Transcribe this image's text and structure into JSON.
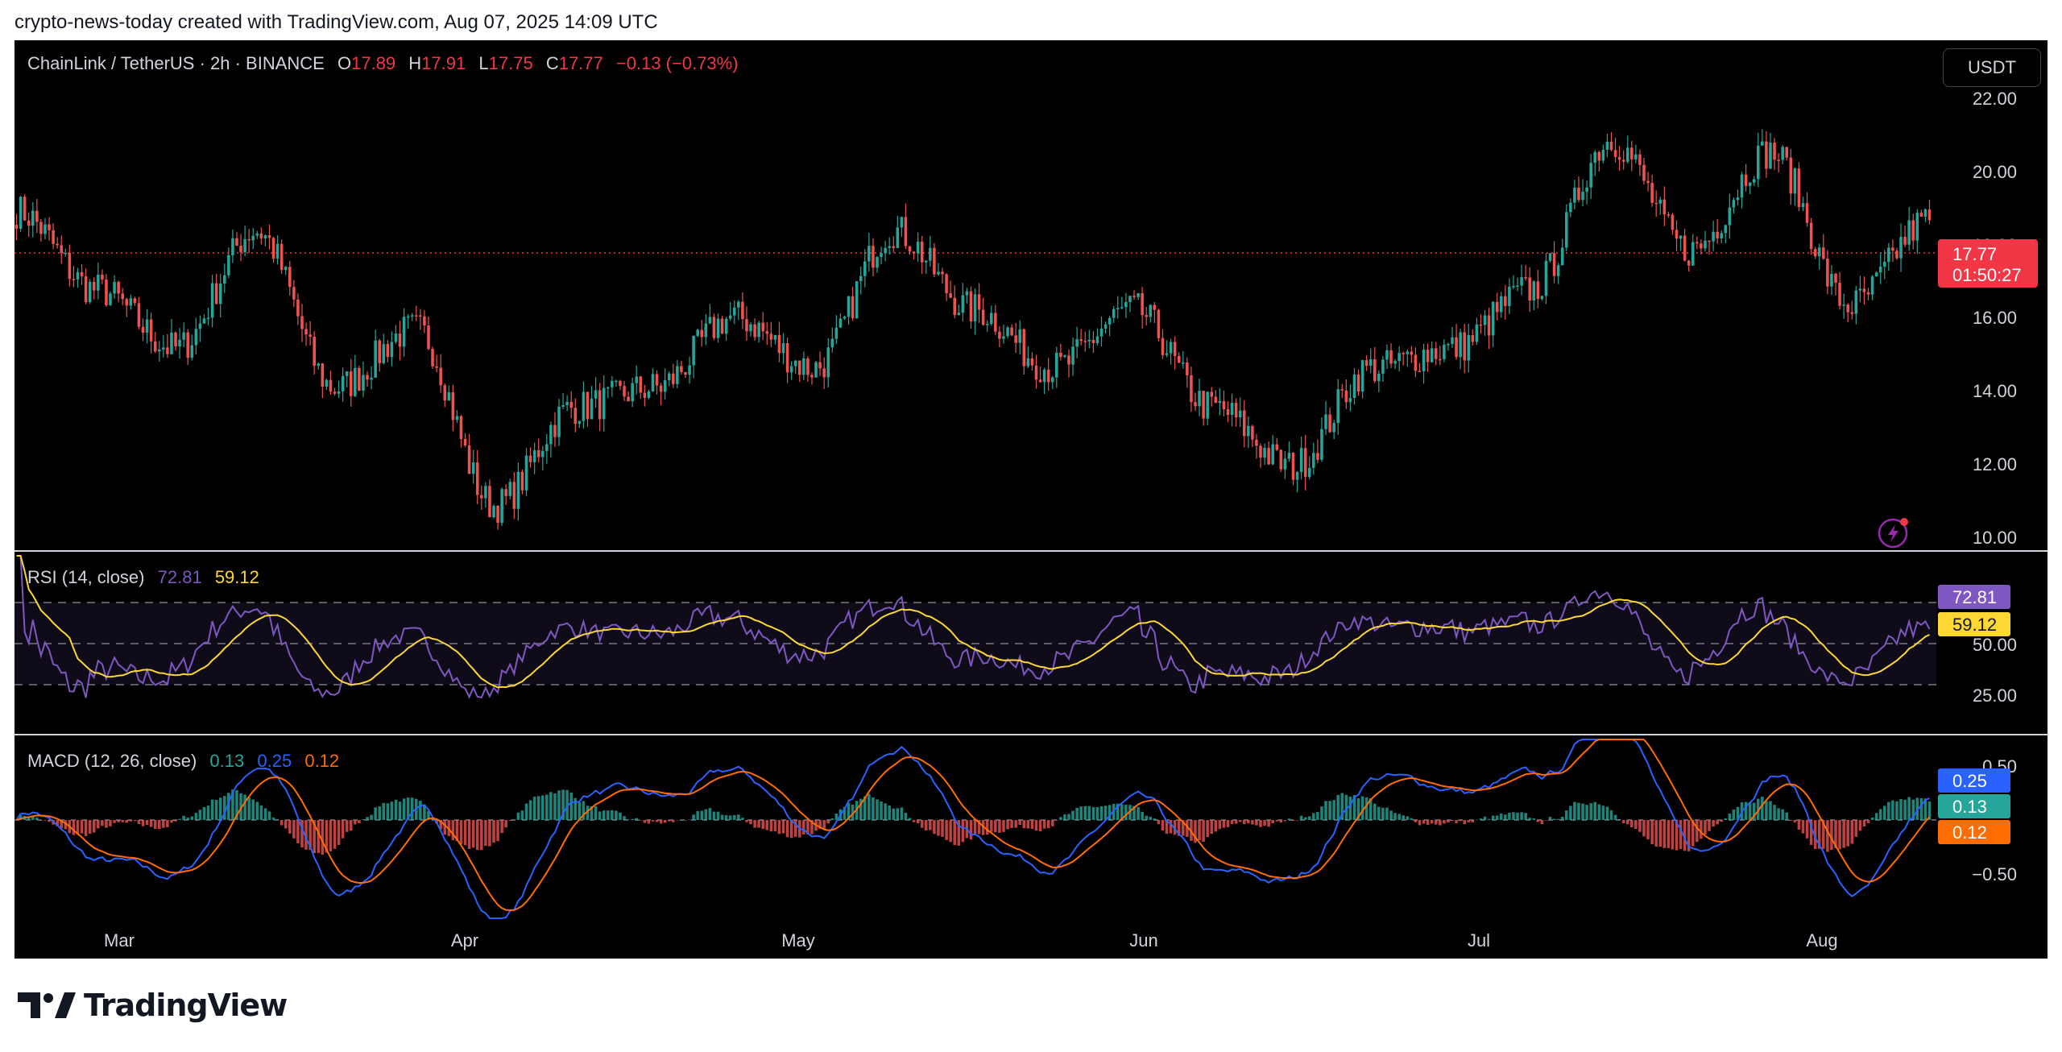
{
  "caption": "crypto-news-today created with TradingView.com, Aug 07, 2025 14:09 UTC",
  "brand": "TradingView",
  "currency_button": "USDT",
  "colors": {
    "up": "#26a69a",
    "down": "#ef5350",
    "rsi": "#7e57c2",
    "rsi_ma": "#fdd835",
    "macd": "#2962ff",
    "signal": "#ff6d00",
    "price_tag": "#f23645"
  },
  "main": {
    "symbol": "ChainLink / TetherUS · 2h · BINANCE",
    "o_label": "O",
    "o": "17.89",
    "h_label": "H",
    "h": "17.91",
    "l_label": "L",
    "l": "17.75",
    "c_label": "C",
    "c": "17.77",
    "change": "−0.13 (−0.73%)",
    "price_axis": [
      "22.00",
      "20.00",
      "18.00",
      "16.00",
      "14.00",
      "12.00",
      "10.00"
    ],
    "last_price": "17.77",
    "countdown": "01:50:27"
  },
  "rsi": {
    "label": "RSI (14, close)",
    "value": "72.81",
    "ma_value": "59.12",
    "axis": [
      "50.00",
      "25.00"
    ],
    "tag_rsi": "72.81",
    "tag_ma": "59.12",
    "bands": [
      70,
      50,
      30
    ]
  },
  "macd": {
    "label": "MACD (12, 26, close)",
    "hist": "0.13",
    "macd": "0.25",
    "signal": "0.12",
    "axis": [
      "0.50",
      "−0.50"
    ],
    "tag_macd": "0.25",
    "tag_hist": "0.13",
    "tag_signal": "0.12"
  },
  "time_axis": [
    "Mar",
    "Apr",
    "May",
    "Jun",
    "Jul",
    "Aug"
  ],
  "chart_data": {
    "type": "candlestick",
    "title": "ChainLink / TetherUS · 2h · BINANCE",
    "ylim": [
      10,
      22
    ],
    "x": [
      "Feb 22",
      "Mar 1",
      "Mar 8",
      "Mar 15",
      "Mar 22",
      "Apr 1",
      "Apr 8",
      "Apr 15",
      "Apr 22",
      "May 1",
      "May 8",
      "May 12",
      "May 22",
      "Jun 1",
      "Jun 8",
      "Jun 15",
      "Jun 22",
      "Jul 1",
      "Jul 8",
      "Jul 15",
      "Jul 22",
      "Jul 27",
      "Aug 1",
      "Aug 4",
      "Aug 7"
    ],
    "close_approx": [
      18.0,
      16.0,
      14.5,
      17.5,
      13.5,
      15.0,
      10.5,
      13.0,
      13.5,
      15.3,
      14.0,
      17.5,
      15.5,
      14.0,
      15.5,
      13.0,
      11.5,
      14.0,
      14.5,
      16.0,
      19.8,
      17.0,
      19.5,
      15.6,
      17.77
    ],
    "last": 17.77
  }
}
